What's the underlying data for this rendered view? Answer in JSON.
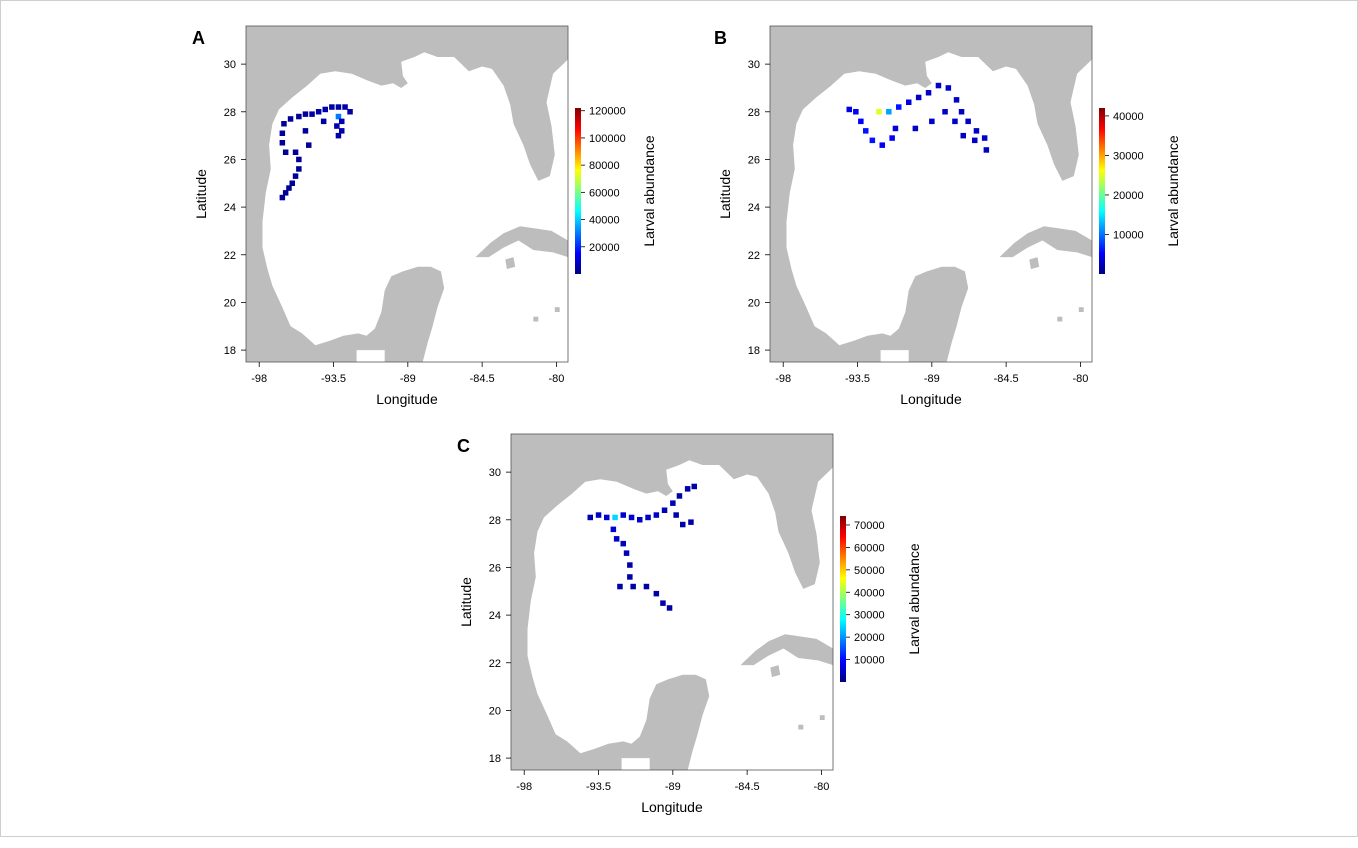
{
  "figure": {
    "common": {
      "xlabel": "Longitude",
      "ylabel": "Latitude",
      "colorbar_label": "Larval abundance",
      "x_ticks": [
        "-98",
        "-93.5",
        "-89",
        "-84.5",
        "-80"
      ],
      "x_tick_values": [
        -98,
        -93.5,
        -89,
        -84.5,
        -80
      ],
      "y_ticks": [
        "18",
        "20",
        "22",
        "24",
        "26",
        "28",
        "30"
      ],
      "y_tick_values": [
        18,
        20,
        22,
        24,
        26,
        28,
        30
      ],
      "xlim": [
        -98.8,
        -79.3
      ],
      "ylim": [
        17.5,
        31.6
      ],
      "land_color": "#bdbdbd",
      "colormap": [
        "#00007f",
        "#0000ff",
        "#007fff",
        "#00ffff",
        "#7fff7f",
        "#ffff00",
        "#ff7f00",
        "#ff0000",
        "#7f0000"
      ]
    },
    "panels": [
      {
        "letter": "A",
        "colorbar_ticks": [
          "20000",
          "40000",
          "60000",
          "80000",
          "100000",
          "120000"
        ],
        "colorbar_values": [
          20000,
          40000,
          60000,
          80000,
          100000,
          120000
        ],
        "colorbar_range": [
          0,
          122000
        ]
      },
      {
        "letter": "B",
        "colorbar_ticks": [
          "10000",
          "20000",
          "30000",
          "40000"
        ],
        "colorbar_values": [
          10000,
          20000,
          30000,
          40000
        ],
        "colorbar_range": [
          0,
          42000
        ]
      },
      {
        "letter": "C",
        "colorbar_ticks": [
          "10000",
          "20000",
          "30000",
          "40000",
          "50000",
          "60000",
          "70000"
        ],
        "colorbar_values": [
          10000,
          20000,
          30000,
          40000,
          50000,
          60000,
          70000
        ],
        "colorbar_range": [
          0,
          74000
        ]
      }
    ]
  },
  "chart_data": [
    {
      "type": "heatmap",
      "panel": "A",
      "xlabel": "Longitude",
      "ylabel": "Latitude",
      "colorbar_label": "Larval abundance",
      "cells": [
        {
          "lon": -96.6,
          "lat": 24.4,
          "v": 3000
        },
        {
          "lon": -96.4,
          "lat": 24.6,
          "v": 3000
        },
        {
          "lon": -96.2,
          "lat": 24.8,
          "v": 3000
        },
        {
          "lon": -96.0,
          "lat": 25.0,
          "v": 3000
        },
        {
          "lon": -95.8,
          "lat": 25.3,
          "v": 3000
        },
        {
          "lon": -95.6,
          "lat": 25.6,
          "v": 3000
        },
        {
          "lon": -95.6,
          "lat": 26.0,
          "v": 3000
        },
        {
          "lon": -95.8,
          "lat": 26.3,
          "v": 3000
        },
        {
          "lon": -96.4,
          "lat": 26.3,
          "v": 3000
        },
        {
          "lon": -96.6,
          "lat": 26.7,
          "v": 3000
        },
        {
          "lon": -96.6,
          "lat": 27.1,
          "v": 3000
        },
        {
          "lon": -96.5,
          "lat": 27.5,
          "v": 3000
        },
        {
          "lon": -96.1,
          "lat": 27.7,
          "v": 3000
        },
        {
          "lon": -95.6,
          "lat": 27.8,
          "v": 3000
        },
        {
          "lon": -95.2,
          "lat": 27.9,
          "v": 3000
        },
        {
          "lon": -94.8,
          "lat": 27.9,
          "v": 5000
        },
        {
          "lon": -94.4,
          "lat": 28.0,
          "v": 5000
        },
        {
          "lon": -94.0,
          "lat": 28.1,
          "v": 5000
        },
        {
          "lon": -93.6,
          "lat": 28.2,
          "v": 5000
        },
        {
          "lon": -93.2,
          "lat": 28.2,
          "v": 5000
        },
        {
          "lon": -92.8,
          "lat": 28.2,
          "v": 5000
        },
        {
          "lon": -92.5,
          "lat": 28.0,
          "v": 5000
        },
        {
          "lon": -93.2,
          "lat": 27.8,
          "v": 30000
        },
        {
          "lon": -93.0,
          "lat": 27.6,
          "v": 6000
        },
        {
          "lon": -93.3,
          "lat": 27.4,
          "v": 6000
        },
        {
          "lon": -93.0,
          "lat": 27.2,
          "v": 6000
        },
        {
          "lon": -93.2,
          "lat": 27.0,
          "v": 5000
        },
        {
          "lon": -94.1,
          "lat": 27.6,
          "v": 4000
        },
        {
          "lon": -95.2,
          "lat": 27.2,
          "v": 3000
        },
        {
          "lon": -95.0,
          "lat": 26.6,
          "v": 3000
        }
      ]
    },
    {
      "type": "heatmap",
      "panel": "B",
      "xlabel": "Longitude",
      "ylabel": "Latitude",
      "colorbar_label": "Larval abundance",
      "cells": [
        {
          "lon": -94.0,
          "lat": 28.1,
          "v": 4000
        },
        {
          "lon": -93.6,
          "lat": 28.0,
          "v": 5000
        },
        {
          "lon": -93.3,
          "lat": 27.6,
          "v": 5000
        },
        {
          "lon": -93.0,
          "lat": 27.2,
          "v": 6000
        },
        {
          "lon": -92.6,
          "lat": 26.8,
          "v": 6000
        },
        {
          "lon": -92.0,
          "lat": 26.6,
          "v": 5000
        },
        {
          "lon": -91.4,
          "lat": 26.9,
          "v": 5000
        },
        {
          "lon": -91.2,
          "lat": 27.3,
          "v": 4000
        },
        {
          "lon": -92.2,
          "lat": 28.0,
          "v": 25000
        },
        {
          "lon": -91.6,
          "lat": 28.0,
          "v": 12000
        },
        {
          "lon": -91.0,
          "lat": 28.2,
          "v": 6000
        },
        {
          "lon": -90.4,
          "lat": 28.4,
          "v": 4000
        },
        {
          "lon": -89.8,
          "lat": 28.6,
          "v": 3000
        },
        {
          "lon": -89.2,
          "lat": 28.8,
          "v": 3000
        },
        {
          "lon": -88.6,
          "lat": 29.1,
          "v": 3000
        },
        {
          "lon": -88.0,
          "lat": 29.0,
          "v": 3000
        },
        {
          "lon": -87.5,
          "lat": 28.5,
          "v": 3000
        },
        {
          "lon": -87.2,
          "lat": 28.0,
          "v": 3000
        },
        {
          "lon": -86.8,
          "lat": 27.6,
          "v": 3000
        },
        {
          "lon": -86.3,
          "lat": 27.2,
          "v": 3000
        },
        {
          "lon": -85.8,
          "lat": 26.9,
          "v": 3000
        },
        {
          "lon": -85.7,
          "lat": 26.4,
          "v": 3000
        },
        {
          "lon": -86.4,
          "lat": 26.8,
          "v": 3000
        },
        {
          "lon": -87.1,
          "lat": 27.0,
          "v": 3000
        },
        {
          "lon": -87.6,
          "lat": 27.6,
          "v": 3000
        },
        {
          "lon": -88.2,
          "lat": 28.0,
          "v": 3000
        },
        {
          "lon": -89.0,
          "lat": 27.6,
          "v": 3000
        },
        {
          "lon": -90.0,
          "lat": 27.3,
          "v": 3000
        }
      ]
    },
    {
      "type": "heatmap",
      "panel": "C",
      "xlabel": "Longitude",
      "ylabel": "Latitude",
      "colorbar_label": "Larval abundance",
      "cells": [
        {
          "lon": -94.0,
          "lat": 28.1,
          "v": 4000
        },
        {
          "lon": -93.5,
          "lat": 28.2,
          "v": 5000
        },
        {
          "lon": -93.0,
          "lat": 28.1,
          "v": 6000
        },
        {
          "lon": -92.5,
          "lat": 28.1,
          "v": 25000
        },
        {
          "lon": -92.0,
          "lat": 28.2,
          "v": 6000
        },
        {
          "lon": -91.5,
          "lat": 28.1,
          "v": 6000
        },
        {
          "lon": -91.0,
          "lat": 28.0,
          "v": 5000
        },
        {
          "lon": -90.5,
          "lat": 28.1,
          "v": 5000
        },
        {
          "lon": -90.0,
          "lat": 28.2,
          "v": 5000
        },
        {
          "lon": -89.5,
          "lat": 28.4,
          "v": 4000
        },
        {
          "lon": -89.0,
          "lat": 28.7,
          "v": 4000
        },
        {
          "lon": -88.6,
          "lat": 29.0,
          "v": 3000
        },
        {
          "lon": -88.1,
          "lat": 29.3,
          "v": 3000
        },
        {
          "lon": -87.7,
          "lat": 29.4,
          "v": 3000
        },
        {
          "lon": -88.8,
          "lat": 28.2,
          "v": 3000
        },
        {
          "lon": -88.4,
          "lat": 27.8,
          "v": 3000
        },
        {
          "lon": -87.9,
          "lat": 27.9,
          "v": 3000
        },
        {
          "lon": -92.6,
          "lat": 27.6,
          "v": 6000
        },
        {
          "lon": -92.4,
          "lat": 27.2,
          "v": 6000
        },
        {
          "lon": -92.0,
          "lat": 27.0,
          "v": 5000
        },
        {
          "lon": -91.8,
          "lat": 26.6,
          "v": 4000
        },
        {
          "lon": -91.6,
          "lat": 26.1,
          "v": 3000
        },
        {
          "lon": -91.6,
          "lat": 25.6,
          "v": 3000
        },
        {
          "lon": -92.2,
          "lat": 25.2,
          "v": 3000
        },
        {
          "lon": -91.4,
          "lat": 25.2,
          "v": 3000
        },
        {
          "lon": -90.6,
          "lat": 25.2,
          "v": 3000
        },
        {
          "lon": -90.0,
          "lat": 24.9,
          "v": 3000
        },
        {
          "lon": -89.6,
          "lat": 24.5,
          "v": 3000
        },
        {
          "lon": -89.2,
          "lat": 24.3,
          "v": 3000
        }
      ]
    }
  ]
}
